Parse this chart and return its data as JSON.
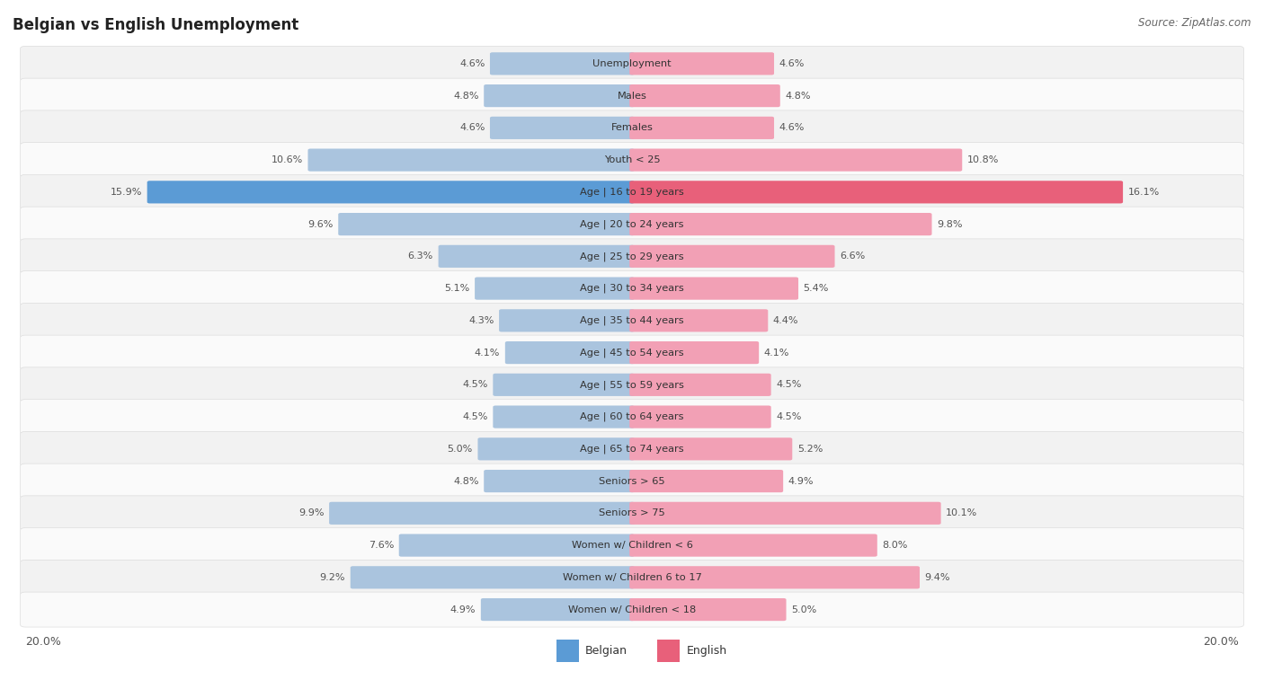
{
  "title": "Belgian vs English Unemployment",
  "source": "Source: ZipAtlas.com",
  "categories": [
    "Unemployment",
    "Males",
    "Females",
    "Youth < 25",
    "Age | 16 to 19 years",
    "Age | 20 to 24 years",
    "Age | 25 to 29 years",
    "Age | 30 to 34 years",
    "Age | 35 to 44 years",
    "Age | 45 to 54 years",
    "Age | 55 to 59 years",
    "Age | 60 to 64 years",
    "Age | 65 to 74 years",
    "Seniors > 65",
    "Seniors > 75",
    "Women w/ Children < 6",
    "Women w/ Children 6 to 17",
    "Women w/ Children < 18"
  ],
  "belgian": [
    4.6,
    4.8,
    4.6,
    10.6,
    15.9,
    9.6,
    6.3,
    5.1,
    4.3,
    4.1,
    4.5,
    4.5,
    5.0,
    4.8,
    9.9,
    7.6,
    9.2,
    4.9
  ],
  "english": [
    4.6,
    4.8,
    4.6,
    10.8,
    16.1,
    9.8,
    6.6,
    5.4,
    4.4,
    4.1,
    4.5,
    4.5,
    5.2,
    4.9,
    10.1,
    8.0,
    9.4,
    5.0
  ],
  "max_val": 20.0,
  "belgian_color": "#aac4de",
  "english_color": "#f2a0b5",
  "row_bg_even": "#f2f2f2",
  "row_bg_odd": "#fafafa",
  "row_edge_color": "#dddddd",
  "value_color": "#555555",
  "title_color": "#222222",
  "source_color": "#666666",
  "highlight_belgian_color": "#5b9bd5",
  "highlight_english_color": "#e8607a",
  "legend_belgian_color": "#5b9bd5",
  "legend_english_color": "#e8607a"
}
